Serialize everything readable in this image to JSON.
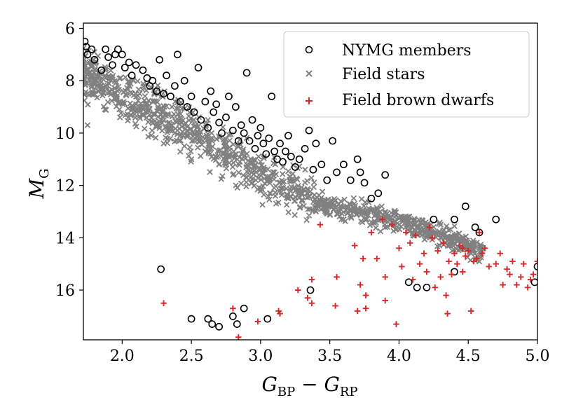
{
  "chart_data": {
    "type": "scatter",
    "title": "",
    "xlabel": {
      "main": "G",
      "sub1": "BP",
      "minus": " − ",
      "main2": "G",
      "sub2": "RP"
    },
    "ylabel": {
      "main": "M",
      "sub": "G"
    },
    "xlim": [
      1.72,
      5.0
    ],
    "ylim": [
      17.9,
      5.8
    ],
    "y_inverted": true,
    "x_ticks": [
      2.0,
      2.5,
      3.0,
      3.5,
      4.0,
      4.5,
      5.0
    ],
    "x_tick_labels": [
      "2.0",
      "2.5",
      "3.0",
      "3.5",
      "4.0",
      "4.5",
      "5.0"
    ],
    "y_ticks": [
      6,
      8,
      10,
      12,
      14,
      16
    ],
    "y_tick_labels": [
      "6",
      "8",
      "10",
      "12",
      "14",
      "16"
    ],
    "grid": false,
    "legend_position": "upper right",
    "colors": {
      "members": "#000000",
      "field": "#808080",
      "brown_dwarfs": "#d62728"
    },
    "series": [
      {
        "name": "NYMG members",
        "marker": "open-circle",
        "points": [
          [
            1.73,
            6.5
          ],
          [
            1.74,
            6.7
          ],
          [
            1.75,
            7.0
          ],
          [
            1.78,
            6.8
          ],
          [
            1.8,
            7.2
          ],
          [
            1.85,
            7.6
          ],
          [
            1.88,
            6.8
          ],
          [
            1.9,
            7.1
          ],
          [
            1.93,
            7.4
          ],
          [
            1.95,
            7.0
          ],
          [
            1.97,
            6.8
          ],
          [
            2.0,
            7.0
          ],
          [
            2.02,
            7.5
          ],
          [
            2.05,
            7.3
          ],
          [
            2.07,
            7.8
          ],
          [
            2.1,
            7.4
          ],
          [
            2.15,
            7.6
          ],
          [
            2.18,
            7.9
          ],
          [
            2.2,
            8.2
          ],
          [
            2.22,
            8.0
          ],
          [
            2.25,
            8.4
          ],
          [
            2.27,
            7.2
          ],
          [
            2.3,
            8.5
          ],
          [
            2.32,
            7.8
          ],
          [
            2.35,
            8.6
          ],
          [
            2.38,
            8.2
          ],
          [
            2.4,
            7.0
          ],
          [
            2.42,
            8.8
          ],
          [
            2.45,
            8.0
          ],
          [
            2.47,
            9.0
          ],
          [
            2.5,
            8.6
          ],
          [
            2.52,
            9.2
          ],
          [
            2.55,
            7.5
          ],
          [
            2.57,
            9.5
          ],
          [
            2.6,
            8.8
          ],
          [
            2.62,
            9.8
          ],
          [
            2.64,
            8.4
          ],
          [
            2.66,
            9.2
          ],
          [
            2.68,
            8.9
          ],
          [
            2.7,
            9.6
          ],
          [
            2.72,
            10.0
          ],
          [
            2.75,
            9.4
          ],
          [
            2.77,
            8.6
          ],
          [
            2.8,
            9.9
          ],
          [
            2.82,
            9.0
          ],
          [
            2.84,
            10.3
          ],
          [
            2.86,
            9.7
          ],
          [
            2.88,
            10.0
          ],
          [
            2.9,
            7.7
          ],
          [
            2.92,
            10.3
          ],
          [
            2.94,
            9.5
          ],
          [
            2.96,
            10.6
          ],
          [
            2.98,
            10.1
          ],
          [
            3.0,
            9.8
          ],
          [
            3.02,
            10.4
          ],
          [
            3.04,
            10.8
          ],
          [
            3.06,
            10.2
          ],
          [
            3.08,
            8.6
          ],
          [
            3.1,
            10.7
          ],
          [
            3.12,
            11.0
          ],
          [
            3.14,
            10.4
          ],
          [
            3.16,
            11.1
          ],
          [
            3.18,
            10.7
          ],
          [
            3.2,
            10.1
          ],
          [
            3.22,
            10.9
          ],
          [
            3.25,
            11.3
          ],
          [
            3.28,
            11.0
          ],
          [
            3.32,
            10.6
          ],
          [
            3.35,
            9.9
          ],
          [
            3.38,
            11.4
          ],
          [
            3.4,
            10.4
          ],
          [
            3.44,
            11.2
          ],
          [
            3.48,
            11.8
          ],
          [
            3.52,
            10.3
          ],
          [
            3.55,
            11.5
          ],
          [
            3.6,
            11.2
          ],
          [
            3.65,
            11.8
          ],
          [
            3.7,
            11.0
          ],
          [
            3.72,
            11.5
          ],
          [
            3.75,
            11.9
          ],
          [
            3.8,
            12.5
          ],
          [
            3.85,
            12.3
          ],
          [
            3.9,
            11.6
          ],
          [
            4.07,
            15.7
          ],
          [
            4.13,
            15.9
          ],
          [
            4.2,
            15.9
          ],
          [
            4.25,
            13.3
          ],
          [
            4.4,
            13.3
          ],
          [
            4.48,
            12.8
          ],
          [
            4.55,
            13.6
          ],
          [
            4.58,
            13.8
          ],
          [
            4.7,
            13.3
          ],
          [
            4.4,
            15.3
          ],
          [
            4.98,
            15.7
          ],
          [
            5.0,
            15.1
          ],
          [
            2.28,
            15.2
          ],
          [
            2.5,
            17.1
          ],
          [
            2.62,
            17.1
          ],
          [
            2.65,
            17.3
          ],
          [
            2.7,
            17.4
          ],
          [
            2.8,
            17.0
          ],
          [
            2.83,
            17.3
          ],
          [
            2.88,
            16.7
          ],
          [
            3.05,
            17.1
          ],
          [
            3.36,
            16.0
          ]
        ]
      },
      {
        "name": "Field stars",
        "marker": "x",
        "band_anchors": [
          [
            1.72,
            7.7
          ],
          [
            2.0,
            8.5
          ],
          [
            2.5,
            9.9
          ],
          [
            3.0,
            11.6
          ],
          [
            3.5,
            12.8
          ],
          [
            4.0,
            13.4
          ],
          [
            4.5,
            14.3
          ],
          [
            4.6,
            14.6
          ]
        ],
        "points": [
          [
            1.75,
            9.7
          ],
          [
            1.8,
            8.0
          ],
          [
            1.85,
            8.3
          ],
          [
            1.95,
            8.5
          ],
          [
            2.1,
            8.9
          ],
          [
            2.2,
            9.3
          ],
          [
            2.25,
            9.6
          ],
          [
            2.3,
            10.4
          ],
          [
            2.35,
            9.8
          ],
          [
            2.4,
            9.9
          ],
          [
            2.45,
            10.5
          ],
          [
            2.5,
            11.0
          ],
          [
            2.55,
            10.1
          ],
          [
            2.6,
            10.7
          ],
          [
            2.65,
            10.2
          ],
          [
            2.7,
            11.2
          ],
          [
            2.75,
            10.9
          ],
          [
            2.8,
            11.6
          ],
          [
            2.85,
            11.1
          ],
          [
            2.9,
            11.7
          ],
          [
            2.95,
            11.3
          ],
          [
            3.0,
            12.2
          ],
          [
            3.05,
            11.8
          ],
          [
            3.1,
            11.5
          ],
          [
            3.15,
            12.1
          ],
          [
            3.2,
            12.5
          ],
          [
            3.25,
            12.2
          ],
          [
            3.3,
            12.6
          ],
          [
            3.35,
            12.4
          ],
          [
            3.4,
            13.0
          ],
          [
            3.45,
            12.7
          ],
          [
            3.5,
            13.1
          ],
          [
            3.6,
            13.3
          ],
          [
            3.7,
            13.0
          ],
          [
            3.8,
            13.4
          ],
          [
            3.9,
            13.6
          ],
          [
            4.0,
            13.5
          ],
          [
            4.1,
            13.8
          ],
          [
            4.2,
            13.9
          ],
          [
            4.3,
            14.0
          ],
          [
            4.4,
            14.2
          ],
          [
            4.5,
            14.4
          ],
          [
            4.55,
            14.6
          ],
          [
            4.6,
            14.5
          ]
        ]
      },
      {
        "name": "Field brown dwarfs",
        "marker": "plus",
        "points": [
          [
            2.3,
            16.5
          ],
          [
            2.8,
            16.7
          ],
          [
            2.84,
            17.8
          ],
          [
            2.98,
            17.2
          ],
          [
            3.13,
            16.8
          ],
          [
            3.14,
            16.9
          ],
          [
            3.27,
            16.0
          ],
          [
            3.34,
            16.3
          ],
          [
            3.37,
            15.6
          ],
          [
            3.37,
            16.5
          ],
          [
            3.43,
            13.5
          ],
          [
            3.54,
            16.6
          ],
          [
            3.55,
            15.5
          ],
          [
            3.68,
            14.3
          ],
          [
            3.7,
            16.8
          ],
          [
            3.72,
            15.8
          ],
          [
            3.74,
            14.8
          ],
          [
            3.76,
            16.7
          ],
          [
            3.76,
            16.2
          ],
          [
            3.8,
            13.8
          ],
          [
            3.84,
            14.8
          ],
          [
            3.88,
            13.3
          ],
          [
            3.9,
            15.5
          ],
          [
            3.9,
            16.4
          ],
          [
            3.95,
            13.5
          ],
          [
            3.98,
            17.3
          ],
          [
            4.0,
            14.4
          ],
          [
            4.02,
            15.1
          ],
          [
            4.05,
            13.8
          ],
          [
            4.08,
            14.2
          ],
          [
            4.1,
            15.6
          ],
          [
            4.12,
            13.9
          ],
          [
            4.15,
            15.0
          ],
          [
            4.18,
            14.6
          ],
          [
            4.2,
            15.3
          ],
          [
            4.22,
            13.6
          ],
          [
            4.24,
            14.0
          ],
          [
            4.26,
            15.9
          ],
          [
            4.28,
            14.5
          ],
          [
            4.3,
            15.5
          ],
          [
            4.32,
            14.2
          ],
          [
            4.34,
            16.2
          ],
          [
            4.35,
            16.9
          ],
          [
            4.36,
            14.9
          ],
          [
            4.38,
            15.4
          ],
          [
            4.4,
            14.6
          ],
          [
            4.42,
            15.0
          ],
          [
            4.44,
            14.3
          ],
          [
            4.46,
            15.3
          ],
          [
            4.48,
            14.7
          ],
          [
            4.5,
            14.5
          ],
          [
            4.52,
            16.8
          ],
          [
            4.54,
            14.9
          ],
          [
            4.56,
            14.8
          ],
          [
            4.58,
            13.8
          ],
          [
            4.6,
            14.6
          ],
          [
            4.65,
            15.1
          ],
          [
            4.7,
            15.0
          ],
          [
            4.73,
            14.6
          ],
          [
            4.78,
            15.2
          ],
          [
            4.82,
            14.9
          ],
          [
            4.85,
            15.8
          ],
          [
            4.88,
            15.5
          ],
          [
            4.9,
            15.0
          ],
          [
            4.93,
            15.9
          ],
          [
            4.95,
            15.6
          ],
          [
            4.97,
            15.4
          ],
          [
            5.0,
            14.9
          ],
          [
            4.75,
            15.8
          ],
          [
            4.8,
            15.4
          ],
          [
            4.62,
            14.4
          ],
          [
            4.46,
            14.4
          ]
        ]
      }
    ]
  },
  "legend": {
    "items": [
      {
        "label": "NYMG members",
        "marker": "open-circle"
      },
      {
        "label": "Field stars",
        "marker": "x"
      },
      {
        "label": "Field brown dwarfs",
        "marker": "plus"
      }
    ]
  }
}
